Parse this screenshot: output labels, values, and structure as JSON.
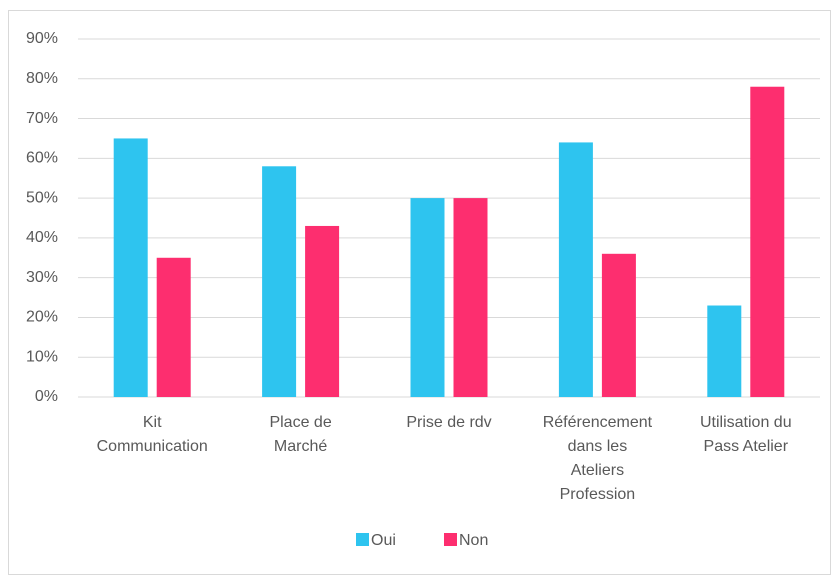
{
  "chart_data": {
    "type": "bar",
    "categories": [
      "Kit Communication",
      "Place de Marché",
      "Prise de rdv",
      "Référencement dans les Ateliers Profession",
      "Utilisation du Pass Atelier"
    ],
    "series": [
      {
        "name": "Oui",
        "color": "#2ec4ef",
        "values": [
          65,
          58,
          50,
          64,
          23
        ]
      },
      {
        "name": "Non",
        "color": "#fd2e6f",
        "values": [
          35,
          43,
          50,
          36,
          78
        ]
      }
    ],
    "ylim": [
      0,
      90
    ],
    "yticks": [
      {
        "value": 0,
        "label": "0%"
      },
      {
        "value": 10,
        "label": "10%"
      },
      {
        "value": 20,
        "label": "20%"
      },
      {
        "value": 30,
        "label": "30%"
      },
      {
        "value": 40,
        "label": "40%"
      },
      {
        "value": 50,
        "label": "50%"
      },
      {
        "value": 60,
        "label": "60%"
      },
      {
        "value": 70,
        "label": "70%"
      },
      {
        "value": 80,
        "label": "80%"
      },
      {
        "value": 90,
        "label": "90%"
      }
    ],
    "grid": true,
    "legend": "bottom"
  }
}
